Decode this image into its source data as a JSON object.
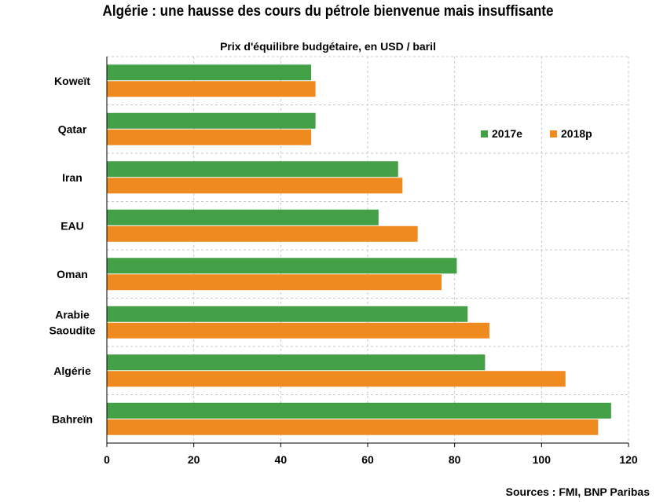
{
  "chart_data": {
    "type": "bar",
    "orientation": "horizontal",
    "title": "Algérie : une hausse des cours du pétrole bienvenue mais insuffisante",
    "subtitle": "Prix d'équilibre budgétaire, en USD / baril",
    "source": "Sources : FMI, BNP Paribas",
    "categories": [
      "Koweït",
      "Qatar",
      "Iran",
      "EAU",
      "Oman",
      "Arabie Saoudite",
      "Algérie",
      "Bahreïn"
    ],
    "category_lines": [
      [
        "Koweït"
      ],
      [
        "Qatar"
      ],
      [
        "Iran"
      ],
      [
        "EAU"
      ],
      [
        "Oman"
      ],
      [
        "Arabie",
        "Saoudite"
      ],
      [
        "Algérie"
      ],
      [
        "Bahreïn"
      ]
    ],
    "series": [
      {
        "name": "2017e",
        "color": "#43A047",
        "values": [
          47,
          48,
          67,
          62.5,
          80.5,
          83,
          87,
          116
        ]
      },
      {
        "name": "2018p",
        "color": "#EF8A1F",
        "values": [
          48,
          47,
          68,
          71.5,
          77,
          88,
          105.5,
          113
        ]
      }
    ],
    "xlim": [
      0,
      120
    ],
    "xticks": [
      0,
      20,
      40,
      60,
      80,
      100,
      120
    ],
    "grid": true,
    "legend_position": "top-right"
  }
}
